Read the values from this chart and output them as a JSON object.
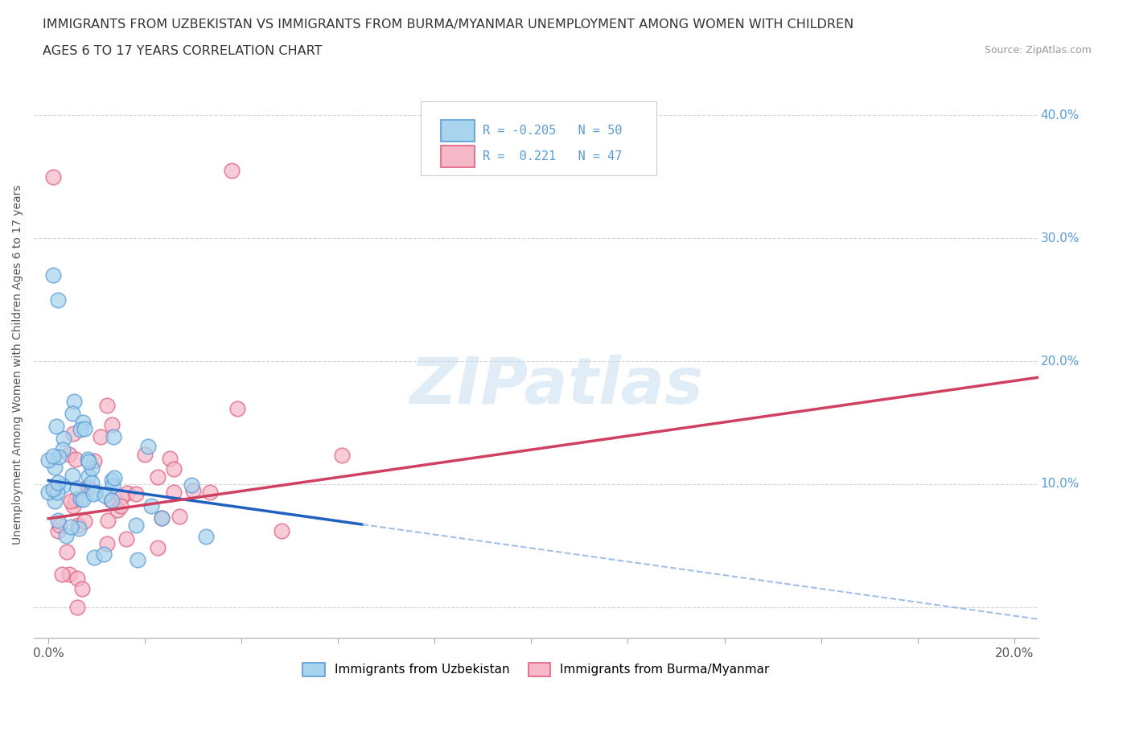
{
  "title_line1": "IMMIGRANTS FROM UZBEKISTAN VS IMMIGRANTS FROM BURMA/MYANMAR UNEMPLOYMENT AMONG WOMEN WITH CHILDREN",
  "title_line2": "AGES 6 TO 17 YEARS CORRELATION CHART",
  "source": "Source: ZipAtlas.com",
  "ylabel_label": "Unemployment Among Women with Children Ages 6 to 17 years",
  "xlim": [
    -0.003,
    0.205
  ],
  "ylim": [
    -0.025,
    0.42
  ],
  "R_uzbekistan": -0.205,
  "N_uzbekistan": 50,
  "R_burma": 0.221,
  "N_burma": 47,
  "color_uzbekistan": "#A8D4EE",
  "color_burma": "#F5B8C8",
  "edge_uzbekistan": "#5B9BD5",
  "edge_burma": "#E06080",
  "trendline_uzbekistan_color": "#2060C0",
  "trendline_burma_color": "#D04060",
  "trendline_dashed_color": "#A0C0E8",
  "background_color": "#ffffff",
  "grid_color": "#d0d0d0",
  "title_color": "#333333",
  "right_label_color": "#5B9BD5",
  "watermark_color": "#C8DFF0",
  "uz_intercept": 0.103,
  "uz_slope": -0.55,
  "burma_intercept": 0.072,
  "burma_slope": 0.56,
  "uz_solid_xend": 0.065,
  "uz_dashed_xend": 0.205
}
